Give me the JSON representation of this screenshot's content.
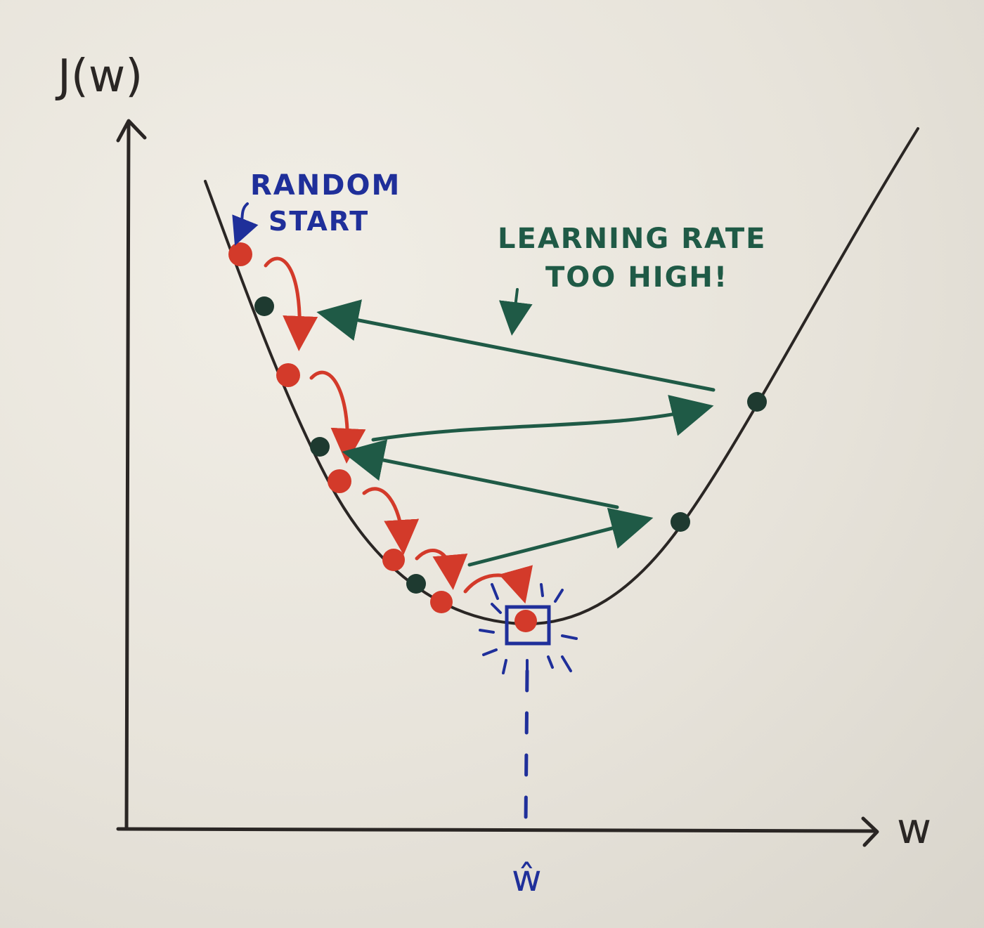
{
  "axes": {
    "y_label": "J(w)",
    "x_label": "w",
    "optimum_label": "ŵ"
  },
  "annotations": {
    "random_start_line1": "RANDOM",
    "random_start_line2": "START",
    "lr_high_line1": "LEARNING RATE",
    "lr_high_line2": "TOO HIGH!"
  },
  "colors": {
    "ink_black": "#2a2624",
    "ink_red": "#d33a2a",
    "ink_green": "#1f5a46",
    "ink_blue": "#1f2f9a",
    "paper": "#ece9e1"
  }
}
